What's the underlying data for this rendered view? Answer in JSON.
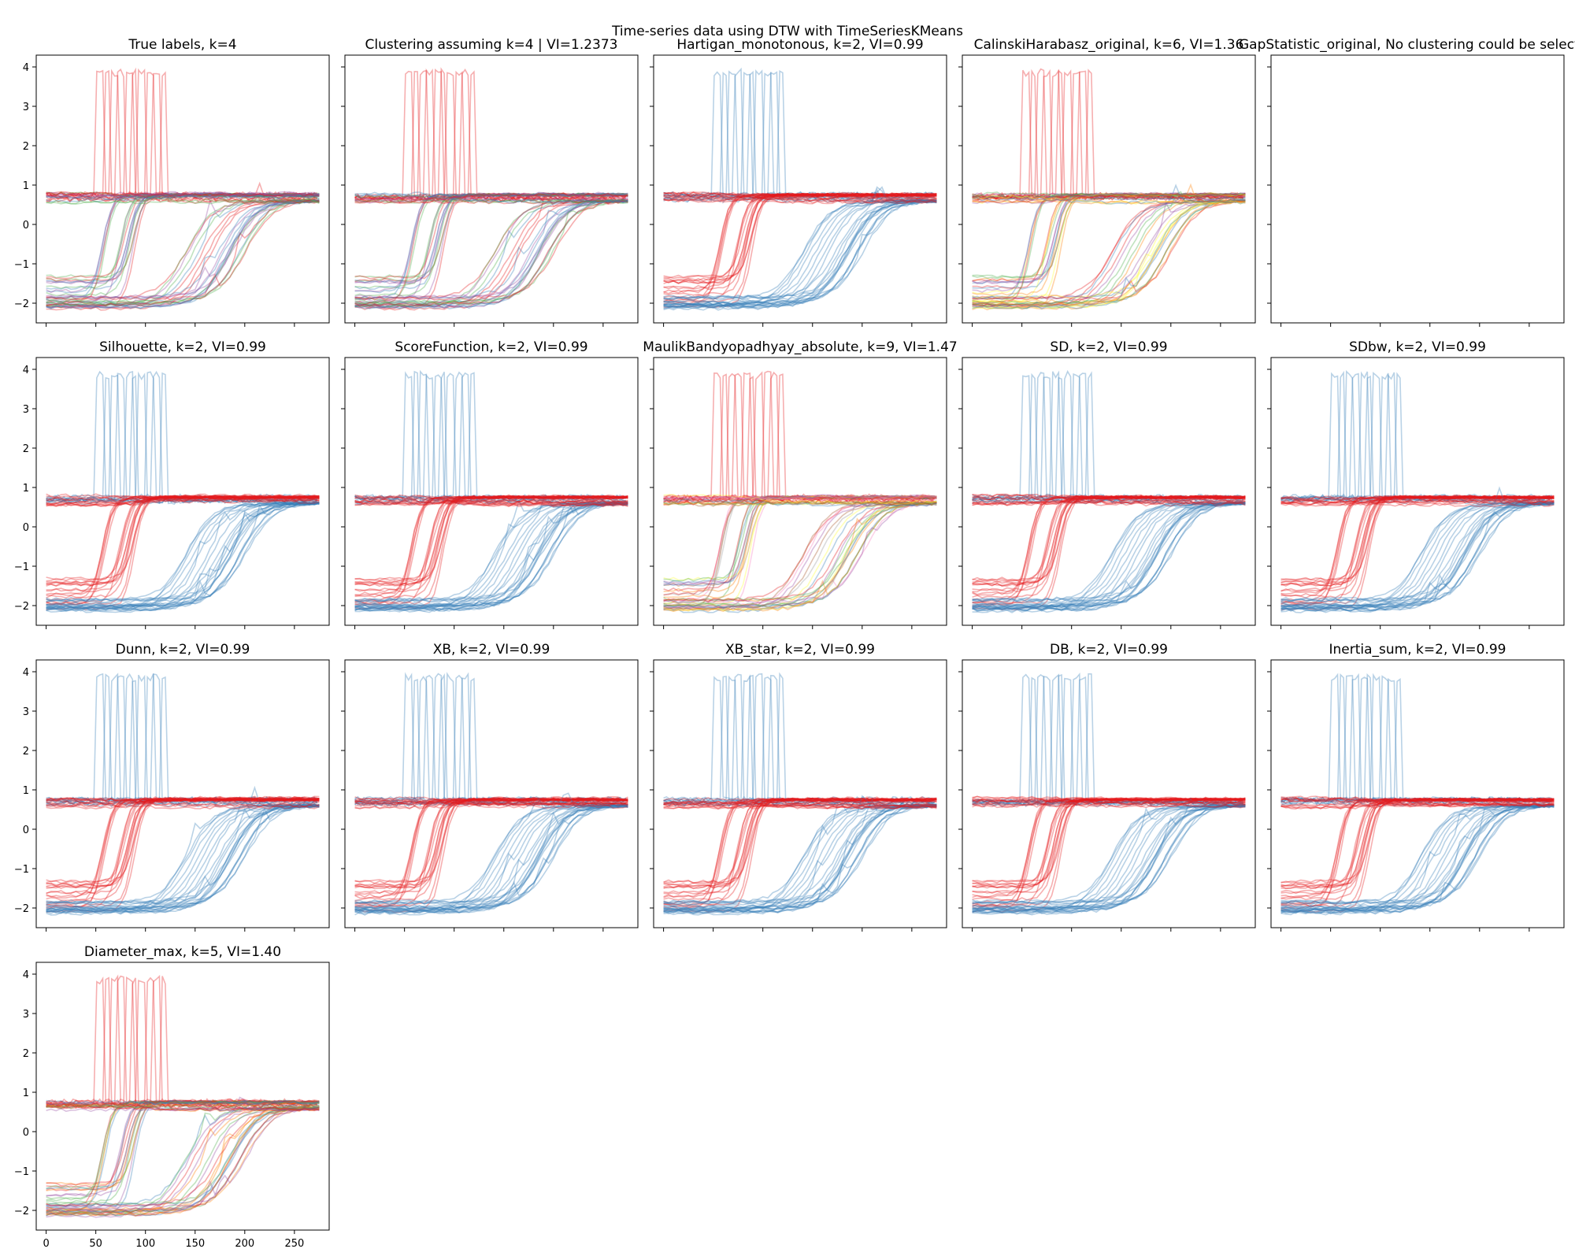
{
  "figure": {
    "suptitle": "Time-series data using DTW with TimeSeriesKMeans",
    "colors": {
      "red": "#e41a1c",
      "blue": "#377eb8",
      "green": "#4daf4a",
      "purple": "#984ea3",
      "orange": "#ff7f00",
      "yellow": "#ffff33",
      "brown": "#a65628",
      "pink": "#f781bf",
      "grey": "#999999"
    }
  },
  "chart_data": [
    {
      "type": "line",
      "title": "True labels, k=4",
      "k": 4,
      "palette": [
        "red",
        "blue",
        "green",
        "purple"
      ],
      "ylim": [
        -2.5,
        4.3
      ],
      "xlim": [
        -10,
        285
      ]
    },
    {
      "type": "line",
      "title": "Clustering assuming k=4 | VI=1.2373",
      "k": 4,
      "palette": [
        "red",
        "blue",
        "green",
        "purple"
      ],
      "ylim": [
        -2.5,
        4.3
      ],
      "xlim": [
        -10,
        285
      ]
    },
    {
      "type": "line",
      "title": "Hartigan_monotonous, k=2, VI=0.99",
      "k": 2,
      "palette": [
        "blue",
        "red"
      ],
      "ylim": [
        -2.5,
        4.3
      ],
      "xlim": [
        -10,
        285
      ]
    },
    {
      "type": "line",
      "title": "CalinskiHarabasz_original, k=6, VI=1.36",
      "k": 6,
      "palette": [
        "red",
        "blue",
        "green",
        "purple",
        "orange",
        "yellow"
      ],
      "ylim": [
        -2.5,
        4.3
      ],
      "xlim": [
        -10,
        285
      ]
    },
    {
      "type": "line",
      "title": "GapStatistic_original, No clustering could be selected",
      "k": 0,
      "palette": [],
      "ylim": [
        -2.5,
        4.3
      ],
      "xlim": [
        -10,
        285
      ]
    },
    {
      "type": "line",
      "title": "Silhouette, k=2, VI=0.99",
      "k": 2,
      "palette": [
        "blue",
        "red"
      ],
      "ylim": [
        -2.5,
        4.3
      ],
      "xlim": [
        -10,
        285
      ]
    },
    {
      "type": "line",
      "title": "ScoreFunction, k=2, VI=0.99",
      "k": 2,
      "palette": [
        "blue",
        "red"
      ],
      "ylim": [
        -2.5,
        4.3
      ],
      "xlim": [
        -10,
        285
      ]
    },
    {
      "type": "line",
      "title": "MaulikBandyopadhyay_absolute, k=9, VI=1.47",
      "k": 9,
      "palette": [
        "red",
        "blue",
        "green",
        "purple",
        "orange",
        "yellow",
        "brown",
        "pink",
        "grey"
      ],
      "ylim": [
        -2.5,
        4.3
      ],
      "xlim": [
        -10,
        285
      ]
    },
    {
      "type": "line",
      "title": "SD, k=2, VI=0.99",
      "k": 2,
      "palette": [
        "blue",
        "red"
      ],
      "ylim": [
        -2.5,
        4.3
      ],
      "xlim": [
        -10,
        285
      ]
    },
    {
      "type": "line",
      "title": "SDbw, k=2, VI=0.99",
      "k": 2,
      "palette": [
        "blue",
        "red"
      ],
      "ylim": [
        -2.5,
        4.3
      ],
      "xlim": [
        -10,
        285
      ]
    },
    {
      "type": "line",
      "title": "Dunn, k=2, VI=0.99",
      "k": 2,
      "palette": [
        "blue",
        "red"
      ],
      "ylim": [
        -2.5,
        4.3
      ],
      "xlim": [
        -10,
        285
      ]
    },
    {
      "type": "line",
      "title": "XB, k=2, VI=0.99",
      "k": 2,
      "palette": [
        "blue",
        "red"
      ],
      "ylim": [
        -2.5,
        4.3
      ],
      "xlim": [
        -10,
        285
      ]
    },
    {
      "type": "line",
      "title": "XB_star, k=2, VI=0.99",
      "k": 2,
      "palette": [
        "blue",
        "red"
      ],
      "ylim": [
        -2.5,
        4.3
      ],
      "xlim": [
        -10,
        285
      ]
    },
    {
      "type": "line",
      "title": "DB, k=2, VI=0.99",
      "k": 2,
      "palette": [
        "blue",
        "red"
      ],
      "ylim": [
        -2.5,
        4.3
      ],
      "xlim": [
        -10,
        285
      ]
    },
    {
      "type": "line",
      "title": "Inertia_sum, k=2, VI=0.99",
      "k": 2,
      "palette": [
        "blue",
        "red"
      ],
      "ylim": [
        -2.5,
        4.3
      ],
      "xlim": [
        -10,
        285
      ]
    },
    {
      "type": "line",
      "title": "Diameter_max, k=5, VI=1.40",
      "k": 5,
      "palette": [
        "red",
        "blue",
        "green",
        "purple",
        "orange"
      ],
      "ylim": [
        -2.5,
        4.3
      ],
      "xlim": [
        -10,
        285
      ]
    }
  ],
  "axes": {
    "yticks": [
      -2,
      -1,
      0,
      1,
      2,
      3,
      4
    ],
    "xticks": [
      0,
      50,
      100,
      150,
      200,
      250
    ]
  }
}
